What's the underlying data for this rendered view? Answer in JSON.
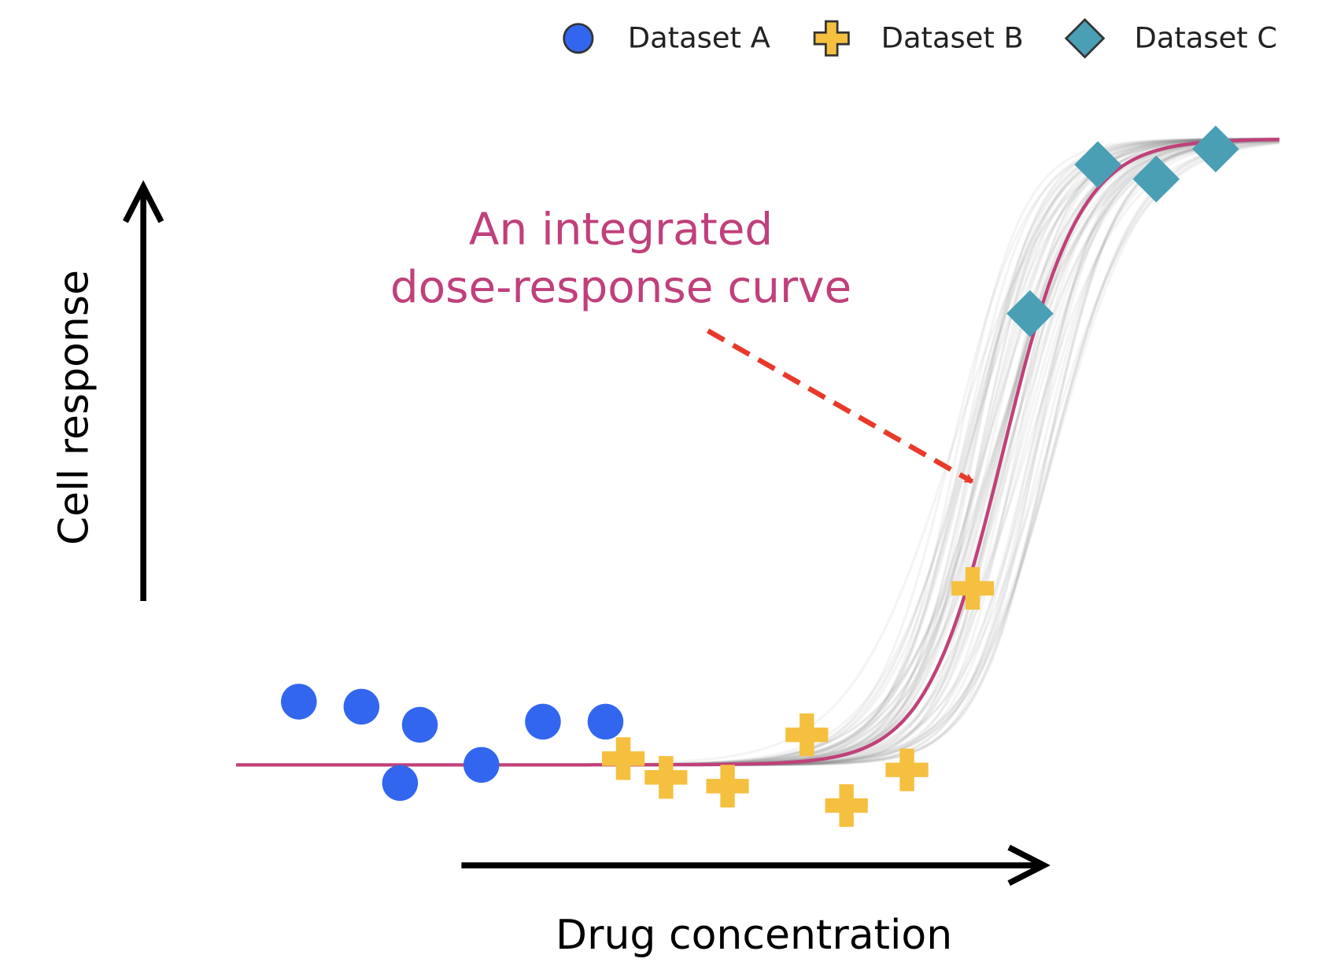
{
  "chart_data": {
    "type": "scatter",
    "xlabel": "Drug concentration",
    "ylabel": "Cell response",
    "annotation": [
      "An integrated",
      "dose-response curve"
    ],
    "annotation_color": "#c0407a",
    "xlim": [
      0,
      100
    ],
    "ylim": [
      -20,
      100
    ],
    "legend": "top-right",
    "curve": {
      "color": "#c0407a",
      "bottom": 0,
      "top": 100,
      "ec50": 73.5,
      "slope": 0.27
    },
    "series": [
      {
        "name": "Dataset A",
        "color": "#3366ee",
        "marker": "circle",
        "x": [
          6.0,
          12.0,
          17.6,
          15.7,
          23.5,
          29.4,
          35.4
        ],
        "values": [
          10.1,
          9.3,
          6.4,
          -2.9,
          0,
          6.9,
          6.9
        ]
      },
      {
        "name": "Dataset B",
        "color": "#f5c040",
        "marker": "plus",
        "x": [
          37.1,
          41.2,
          47.1,
          54.7,
          58.5,
          64.3,
          70.6
        ],
        "values": [
          1.0,
          -2.0,
          -3.4,
          4.8,
          -6.5,
          -0.8,
          28.2
        ]
      },
      {
        "name": "Dataset C",
        "color": "#4a9fb5",
        "marker": "diamond",
        "x": [
          76.1,
          82.6,
          88.2,
          93.9
        ],
        "values": [
          72.1,
          95.9,
          93.6,
          98.4
        ]
      }
    ]
  }
}
